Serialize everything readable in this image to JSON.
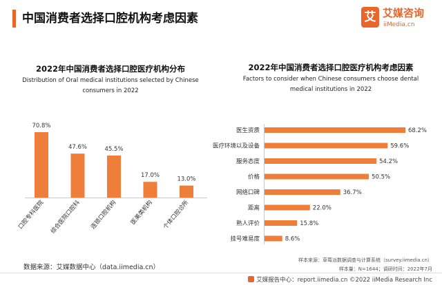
{
  "header": {
    "title": "中国消费者选择口腔机构考虑因素"
  },
  "logo": {
    "mark": "艾",
    "name_cn": "艾媒咨询",
    "name_en": "iiMedia.cn"
  },
  "colors": {
    "accent": "#e8662b",
    "bar": "#ee7e3a"
  },
  "chart_data": [
    {
      "type": "bar",
      "title": "2022年中国消费者选择口腔医疗机构分布",
      "subtitle_line1": "Distribution of Oral medical institutions selected by Chinese",
      "subtitle_line2": "consumers in 2022",
      "categories": [
        "口腔专科医院",
        "综合医院口腔科",
        "连锁口腔机构",
        "医美类机构",
        "个体口腔诊所"
      ],
      "values": [
        70.8,
        47.6,
        45.5,
        17.0,
        13.0
      ],
      "value_labels": [
        "70.8%",
        "47.6%",
        "45.5%",
        "17.0%",
        "13.0%"
      ],
      "ylim": [
        0,
        80
      ],
      "grid": false,
      "legend": "none"
    },
    {
      "type": "bar",
      "orientation": "horizontal",
      "title": "2022年中国消费者选择口腔医疗机构考虑因素",
      "subtitle_line1": "Factors to consider when Chinese consumers choose dental",
      "subtitle_line2": "medical institutions in 2022",
      "categories": [
        "医生资质",
        "医疗环境以及设备",
        "服务态度",
        "价格",
        "网络口碑",
        "距离",
        "熟人评价",
        "挂号难易度"
      ],
      "values": [
        68.2,
        59.6,
        54.2,
        50.5,
        36.7,
        22.0,
        15.8,
        8.6
      ],
      "value_labels": [
        "68.2%",
        "59.6%",
        "54.2%",
        "50.5%",
        "36.7%",
        "22.0%",
        "15.8%",
        "8.6%"
      ],
      "xlim": [
        0,
        70
      ],
      "grid": false,
      "legend": "none"
    }
  ],
  "footer": {
    "source": "数据来源：艾媒数据中心（data.iimedia.cn）",
    "sample_line": "样本来源：草莓派数据调查与计算系统（survey.iimedia.cn）",
    "sample_size_line": "样本量：N=1644；调研时间：2022年7月",
    "copyright": "艾媒报告中心：report.iimedia.cn  ©2022  iiMedia Research  Inc"
  }
}
